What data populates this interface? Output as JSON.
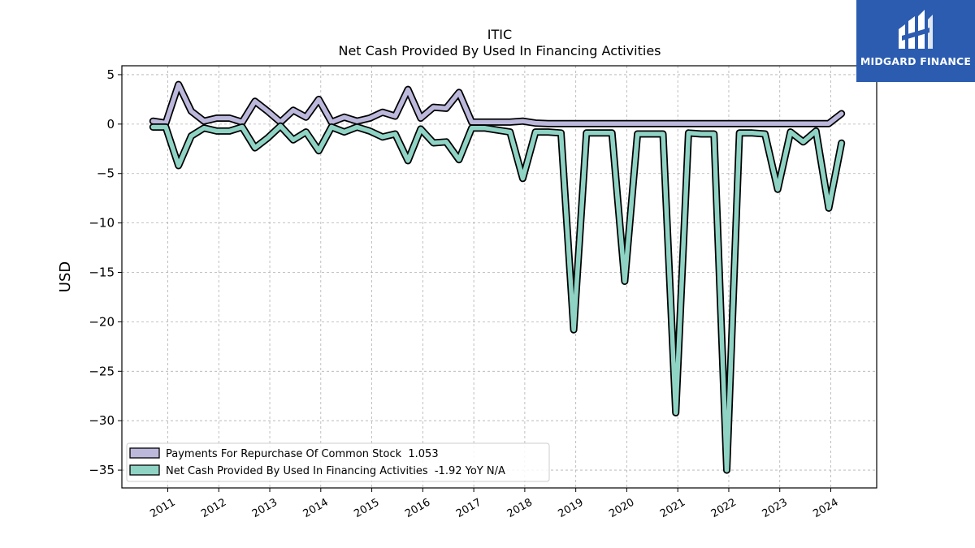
{
  "brand": {
    "name": "MIDGARD FINANCE",
    "color": "#2b5cb0",
    "icon": "midgard-logo-icon"
  },
  "chart_data": {
    "type": "line",
    "title": "ITIC",
    "subtitle": "Net Cash Provided By Used In Financing Activities",
    "ylabel": "USD",
    "xlabel": "",
    "xlim": [
      2010.1,
      2024.9
    ],
    "ylim": [
      -36.8,
      5.9
    ],
    "yticks": [
      5,
      0,
      -5,
      -10,
      -15,
      -20,
      -25,
      -30,
      -35
    ],
    "ytick_labels": [
      "5",
      "0",
      "−5",
      "−10",
      "−15",
      "−20",
      "−25",
      "−30",
      "−35"
    ],
    "xticks": [
      2011,
      2012,
      2013,
      2014,
      2015,
      2016,
      2017,
      2018,
      2019,
      2020,
      2021,
      2022,
      2023,
      2024
    ],
    "xtick_labels": [
      "2011",
      "2012",
      "2013",
      "2014",
      "2015",
      "2016",
      "2017",
      "2018",
      "2019",
      "2020",
      "2021",
      "2022",
      "2023",
      "2024"
    ],
    "grid": true,
    "legend_position": "lower-left",
    "series": [
      {
        "name": "Payments For Repurchase Of Common Stock",
        "legend_label": "Payments For Repurchase Of Common Stock  1.053",
        "color": "#bcb8dc",
        "x": [
          2010.71,
          2010.96,
          2011.21,
          2011.46,
          2011.71,
          2011.96,
          2012.21,
          2012.46,
          2012.71,
          2012.96,
          2013.21,
          2013.46,
          2013.71,
          2013.96,
          2014.21,
          2014.46,
          2014.71,
          2014.96,
          2015.21,
          2015.46,
          2015.71,
          2015.96,
          2016.21,
          2016.46,
          2016.71,
          2016.96,
          2017.21,
          2017.46,
          2017.71,
          2017.96,
          2018.21,
          2018.46,
          2018.71,
          2018.96,
          2019.21,
          2019.46,
          2019.71,
          2019.96,
          2020.21,
          2020.46,
          2020.71,
          2020.96,
          2021.21,
          2021.46,
          2021.71,
          2021.96,
          2022.21,
          2022.46,
          2022.71,
          2022.96,
          2023.21,
          2023.46,
          2023.71,
          2023.96,
          2024.21
        ],
        "values": [
          0.3,
          0.1,
          4.0,
          1.3,
          0.3,
          0.6,
          0.6,
          0.2,
          2.3,
          1.3,
          0.2,
          1.4,
          0.7,
          2.5,
          0.2,
          0.7,
          0.3,
          0.6,
          1.2,
          0.8,
          3.5,
          0.6,
          1.7,
          1.6,
          3.2,
          0.2,
          0.2,
          0.2,
          0.2,
          0.3,
          0.1,
          0.05,
          0.05,
          0.05,
          0.05,
          0.05,
          0.05,
          0.05,
          0.05,
          0.05,
          0.05,
          0.05,
          0.05,
          0.05,
          0.05,
          0.05,
          0.05,
          0.05,
          0.05,
          0.05,
          0.05,
          0.05,
          0.05,
          0.05,
          1.053
        ]
      },
      {
        "name": "Net Cash Provided By Used In Financing Activities",
        "legend_label": "Net Cash Provided By Used In Financing Activities  -1.92 YoY N/A",
        "color": "#8fd3c5",
        "x": [
          2010.71,
          2010.96,
          2011.21,
          2011.46,
          2011.71,
          2011.96,
          2012.21,
          2012.46,
          2012.71,
          2012.96,
          2013.21,
          2013.46,
          2013.71,
          2013.96,
          2014.21,
          2014.46,
          2014.71,
          2014.96,
          2015.21,
          2015.46,
          2015.71,
          2015.96,
          2016.21,
          2016.46,
          2016.71,
          2016.96,
          2017.21,
          2017.46,
          2017.71,
          2017.96,
          2018.21,
          2018.46,
          2018.71,
          2018.96,
          2019.21,
          2019.46,
          2019.71,
          2019.96,
          2020.21,
          2020.46,
          2020.71,
          2020.96,
          2021.21,
          2021.46,
          2021.71,
          2021.96,
          2022.21,
          2022.46,
          2022.71,
          2022.96,
          2023.21,
          2023.46,
          2023.71,
          2023.96,
          2024.21
        ],
        "values": [
          -0.3,
          -0.3,
          -4.2,
          -1.2,
          -0.4,
          -0.7,
          -0.7,
          -0.3,
          -2.4,
          -1.4,
          -0.2,
          -1.6,
          -0.8,
          -2.7,
          -0.3,
          -0.8,
          -0.3,
          -0.7,
          -1.3,
          -1.0,
          -3.7,
          -0.5,
          -1.9,
          -1.8,
          -3.6,
          -0.4,
          -0.4,
          -0.6,
          -0.8,
          -5.5,
          -0.8,
          -0.8,
          -0.9,
          -20.8,
          -0.9,
          -0.9,
          -0.9,
          -15.9,
          -1.0,
          -1.0,
          -1.0,
          -29.2,
          -0.9,
          -1.0,
          -1.0,
          -35.0,
          -0.9,
          -0.9,
          -1.0,
          -6.6,
          -0.8,
          -1.8,
          -0.7,
          -8.5,
          -1.92
        ]
      }
    ]
  }
}
